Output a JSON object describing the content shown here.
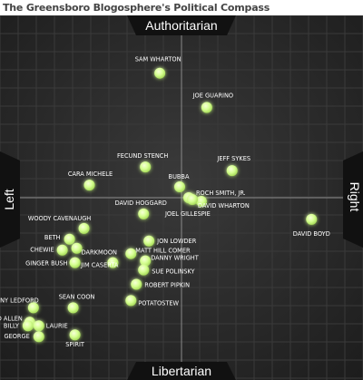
{
  "title": "The Greensboro Blogosphere's Political Compass",
  "chart_data": {
    "type": "scatter",
    "title": "The Greensboro Blogosphere's Political Compass",
    "axis_labels": {
      "top": "Authoritarian",
      "bottom": "Libertarian",
      "left": "Left",
      "right": "Right"
    },
    "xlim": [
      -10,
      10
    ],
    "ylim": [
      -10,
      10
    ],
    "grid": true,
    "colors": {
      "point": "#ccff88",
      "point_glow": "#eaffc0",
      "label": "#ffffff",
      "background": "#262626",
      "grid": "#3a3a3a",
      "axis": "#8a8a8a",
      "tab": "#111111"
    },
    "points": [
      {
        "label": "SAM WHARTON",
        "x": -1.2,
        "y": 6.9
      },
      {
        "label": "JOE GUARINO",
        "x": 1.4,
        "y": 5.0
      },
      {
        "label": "FECUND STENCH",
        "x": -2.0,
        "y": 1.7
      },
      {
        "label": "JEFF SYKES",
        "x": 2.8,
        "y": 1.5
      },
      {
        "label": "CARA MICHELE",
        "x": -5.1,
        "y": 0.7
      },
      {
        "label": "BUBBA",
        "x": -0.1,
        "y": 0.6
      },
      {
        "label": "ROCH SMITH, JR.",
        "x": 0.4,
        "y": 0.0
      },
      {
        "label": "DAVID WHARTON",
        "x": 1.1,
        "y": -0.2
      },
      {
        "label": "DAVID HOGGARD",
        "x": -2.1,
        "y": -0.9
      },
      {
        "label": "JOEL GILLESPIE",
        "x": 0.6,
        "y": -0.1
      },
      {
        "label": "WOODY CAVENAUGH",
        "x": -5.4,
        "y": -1.7
      },
      {
        "label": "DAVID BOYD",
        "x": 7.2,
        "y": -1.2
      },
      {
        "label": "BETH",
        "x": -6.2,
        "y": -2.3
      },
      {
        "label": "DARKMOON",
        "x": -5.8,
        "y": -2.8
      },
      {
        "label": "JON LOWDER",
        "x": -1.8,
        "y": -2.4
      },
      {
        "label": "CHEWIE",
        "x": -6.6,
        "y": -2.9
      },
      {
        "label": "MATT HILL COMER",
        "x": -2.8,
        "y": -3.1
      },
      {
        "label": "DANNY WRIGHT",
        "x": -2.0,
        "y": -3.5
      },
      {
        "label": "GINGER BUSH",
        "x": -5.9,
        "y": -3.6
      },
      {
        "label": "JIM CASERTA",
        "x": -3.8,
        "y": -3.6
      },
      {
        "label": "SUE POLINSKY",
        "x": -2.1,
        "y": -4.0
      },
      {
        "label": "ROBERT PIPKIN",
        "x": -2.5,
        "y": -4.8
      },
      {
        "label": "SEAN COON",
        "x": -6.0,
        "y": -6.1
      },
      {
        "label": "POTATOSTEW",
        "x": -2.8,
        "y": -5.7
      },
      {
        "label": "TONY LEDFORD",
        "x": -8.2,
        "y": -6.1
      },
      {
        "label": "DAVID ALLEN",
        "x": -8.4,
        "y": -6.9
      },
      {
        "label": "BILLY",
        "x": -8.5,
        "y": -7.1
      },
      {
        "label": "LAURIE",
        "x": -7.9,
        "y": -7.1
      },
      {
        "label": "GEORGE",
        "x": -7.9,
        "y": -7.7
      },
      {
        "label": "SPIRIT",
        "x": -5.9,
        "y": -7.6
      }
    ]
  }
}
